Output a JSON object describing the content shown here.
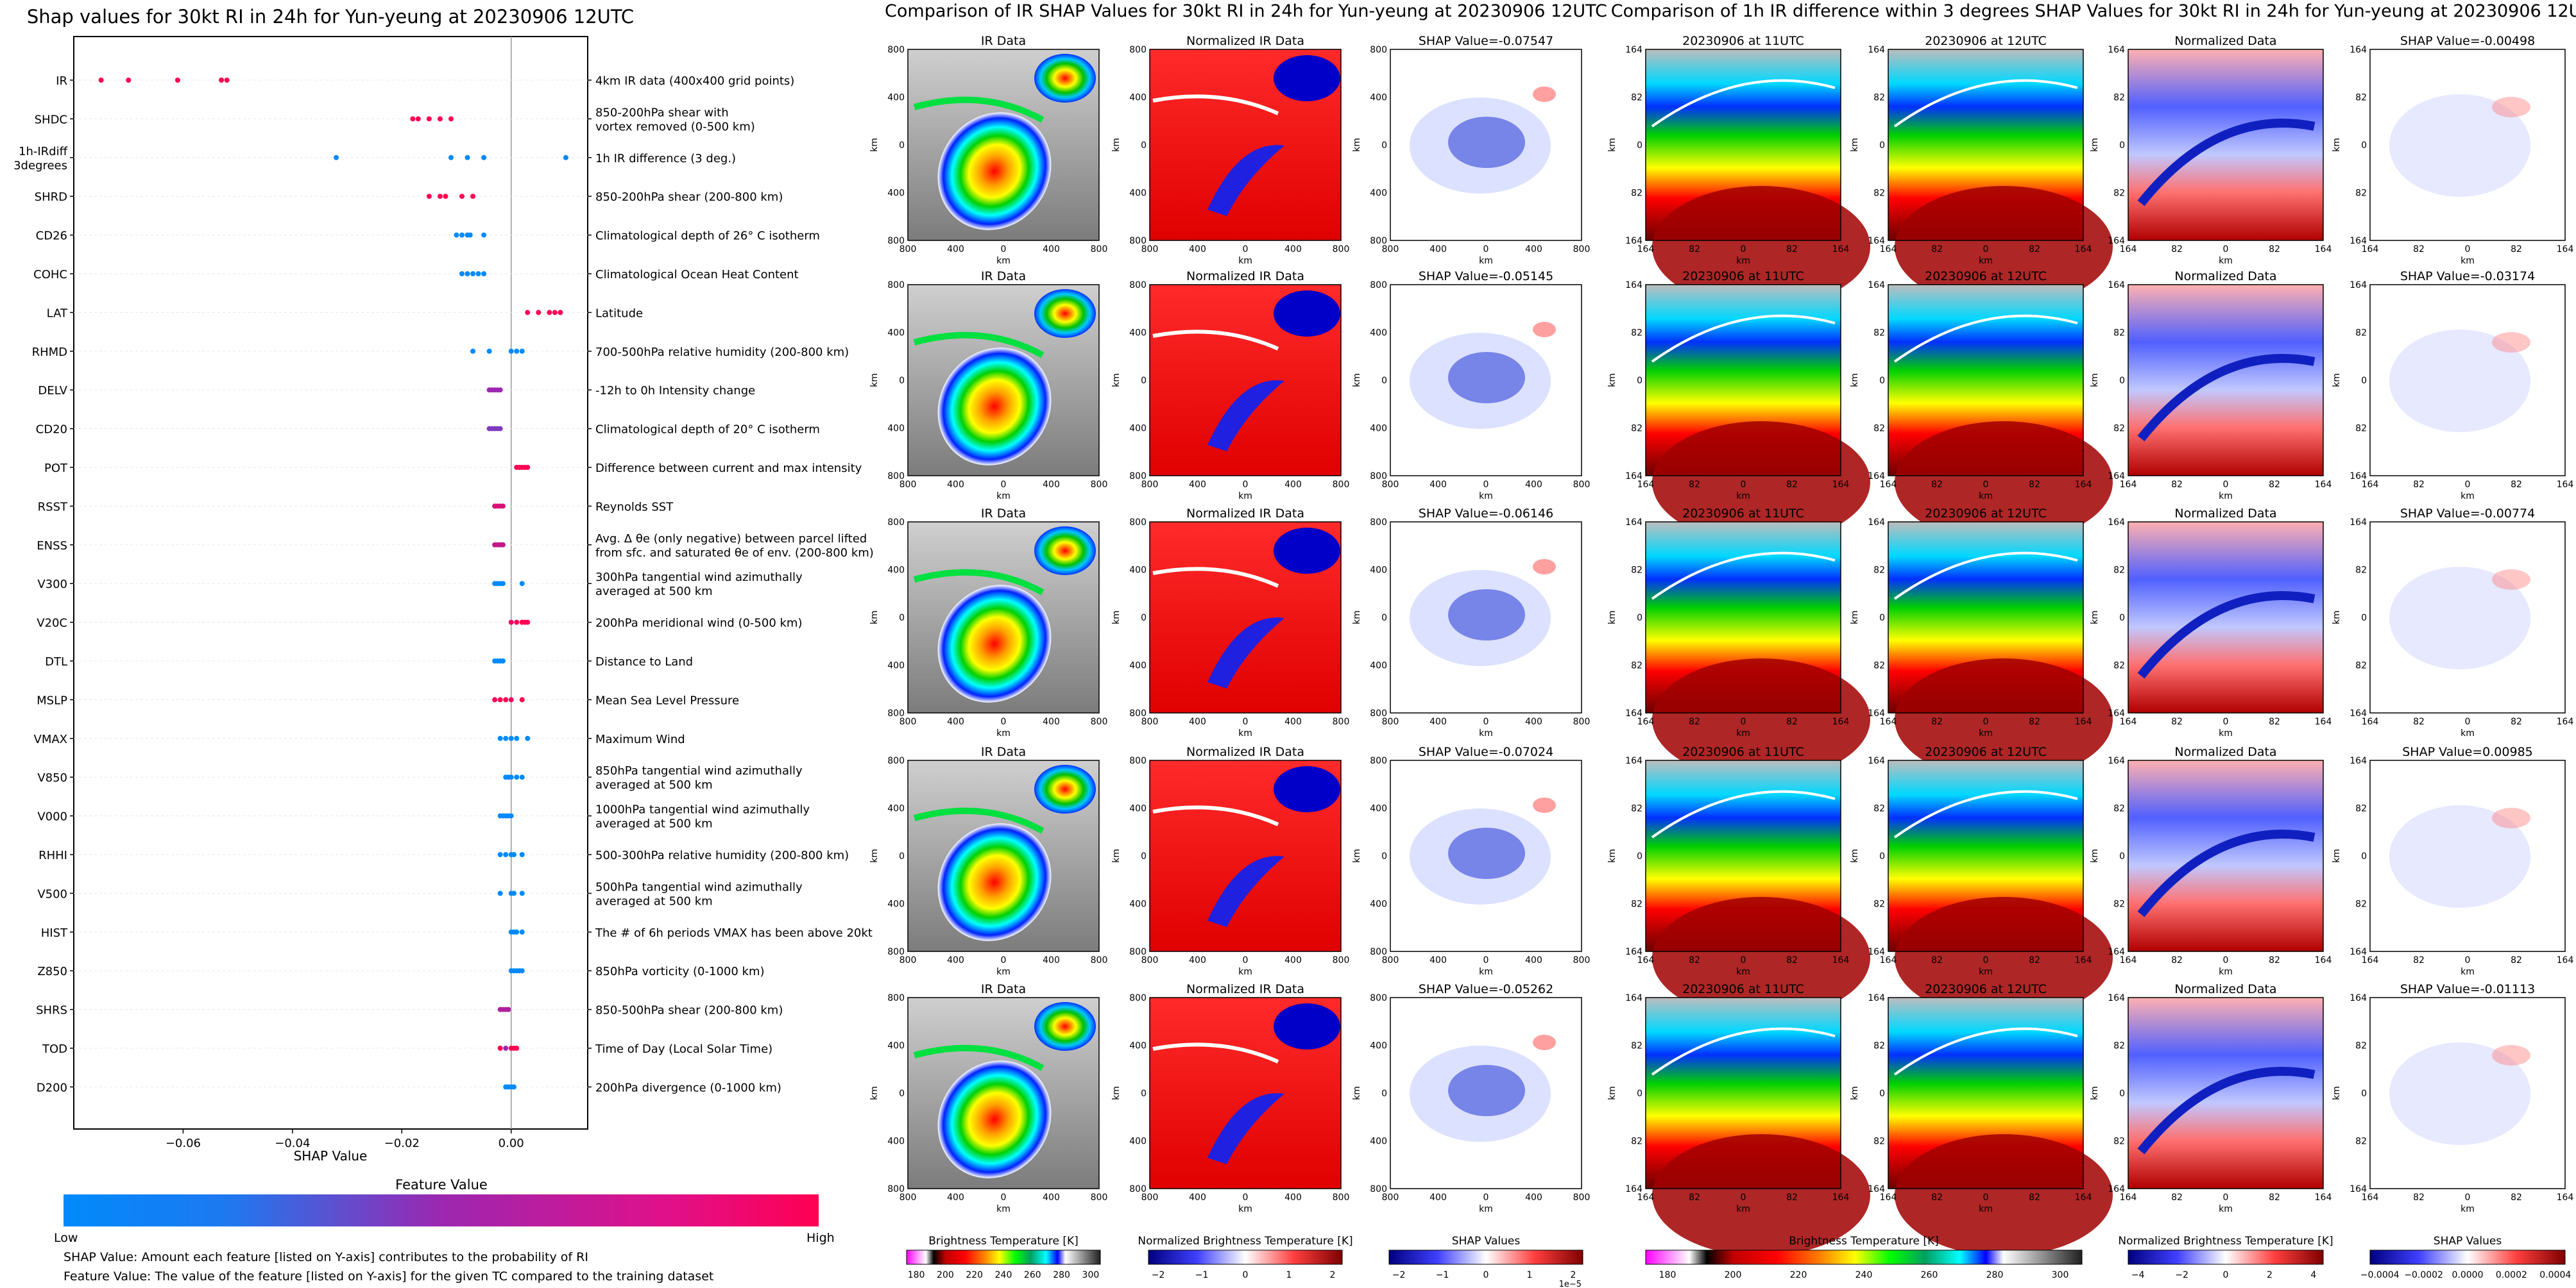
{
  "panel_titles": {
    "shap": "Shap values for 30kt RI in 24h for Yun-yeung at 20230906 12UTC",
    "ir": "Comparison of IR SHAP Values for 30kt RI in 24h for Yun-yeung at 20230906 12UTC",
    "diff": "Comparison of 1h IR difference within 3 degrees SHAP Values for 30kt RI in 24h for Yun-yeung at 20230906 12UTC"
  },
  "colors": {
    "low": "#008afb",
    "mid": "#9c27b0",
    "high": "#ff0052"
  },
  "chart_data": [
    {
      "type": "scatter",
      "title": "Shap values for 30kt RI in 24h for Yun-yeung at 20230906 12UTC",
      "xlabel": "SHAP Value",
      "xlim": [
        -0.08,
        0.014
      ],
      "xticks": [
        -0.06,
        -0.04,
        -0.02,
        0.0
      ],
      "xtick_labels": [
        "−0.06",
        "−0.04",
        "−0.02",
        "0.00"
      ],
      "colorbar": {
        "label": "Feature Value",
        "low": "Low",
        "high": "High"
      },
      "notes": [
        "SHAP Value: Amount each feature [listed on Y-axis] contributes to the probability of RI",
        "Feature Value: The value of the feature [listed on Y-axis] for the given TC compared to the training dataset"
      ],
      "features": [
        {
          "name": "IR",
          "desc": [
            "4km IR data (400x400 grid points)"
          ],
          "points": [
            [
              -0.075,
              1
            ],
            [
              -0.07,
              1
            ],
            [
              -0.061,
              1
            ],
            [
              -0.053,
              1
            ],
            [
              -0.052,
              1
            ]
          ]
        },
        {
          "name": "SHDC",
          "desc": [
            "850-200hPa shear with",
            "vortex removed (0-500 km)"
          ],
          "points": [
            [
              -0.018,
              1
            ],
            [
              -0.017,
              1
            ],
            [
              -0.015,
              1
            ],
            [
              -0.013,
              1
            ],
            [
              -0.011,
              1
            ]
          ]
        },
        {
          "name": [
            "1h-IRdiff",
            "3degrees"
          ],
          "desc": [
            "1h IR difference (3 deg.)"
          ],
          "points": [
            [
              -0.032,
              0
            ],
            [
              -0.011,
              0
            ],
            [
              -0.008,
              0
            ],
            [
              -0.005,
              0
            ],
            [
              0.01,
              0
            ]
          ]
        },
        {
          "name": "SHRD",
          "desc": [
            "850-200hPa shear (200-800 km)"
          ],
          "points": [
            [
              -0.015,
              1
            ],
            [
              -0.013,
              1
            ],
            [
              -0.012,
              1
            ],
            [
              -0.009,
              1
            ],
            [
              -0.007,
              1
            ]
          ]
        },
        {
          "name": "CD26",
          "desc": [
            "Climatological depth of 26° C isotherm"
          ],
          "points": [
            [
              -0.01,
              0
            ],
            [
              -0.009,
              0
            ],
            [
              -0.008,
              0
            ],
            [
              -0.0075,
              0
            ],
            [
              -0.005,
              0
            ]
          ]
        },
        {
          "name": "COHC",
          "desc": [
            "Climatological Ocean Heat Content"
          ],
          "points": [
            [
              -0.009,
              0
            ],
            [
              -0.008,
              0
            ],
            [
              -0.007,
              0
            ],
            [
              -0.006,
              0
            ],
            [
              -0.005,
              0
            ]
          ]
        },
        {
          "name": "LAT",
          "desc": [
            "Latitude"
          ],
          "points": [
            [
              0.003,
              1
            ],
            [
              0.005,
              1
            ],
            [
              0.007,
              1
            ],
            [
              0.008,
              1
            ],
            [
              0.009,
              1
            ]
          ]
        },
        {
          "name": "RHMD",
          "desc": [
            "700-500hPa relative humidity (200-800 km)"
          ],
          "points": [
            [
              -0.007,
              0
            ],
            [
              -0.004,
              0
            ],
            [
              0.0,
              0
            ],
            [
              0.001,
              0
            ],
            [
              0.002,
              0
            ]
          ]
        },
        {
          "name": "DELV",
          "desc": [
            "-12h to 0h Intensity change"
          ],
          "points": [
            [
              -0.004,
              0.5
            ],
            [
              -0.0035,
              0.5
            ],
            [
              -0.003,
              0.5
            ],
            [
              -0.0025,
              0.5
            ],
            [
              -0.002,
              0.5
            ]
          ]
        },
        {
          "name": "CD20",
          "desc": [
            "Climatological depth of 20° C isotherm"
          ],
          "points": [
            [
              -0.004,
              0.4
            ],
            [
              -0.0035,
              0.4
            ],
            [
              -0.003,
              0.4
            ],
            [
              -0.0025,
              0.4
            ],
            [
              -0.002,
              0.4
            ]
          ]
        },
        {
          "name": "POT",
          "desc": [
            "Difference between current and max intensity"
          ],
          "points": [
            [
              0.001,
              1
            ],
            [
              0.0015,
              1
            ],
            [
              0.002,
              1
            ],
            [
              0.0025,
              1
            ],
            [
              0.003,
              1
            ]
          ]
        },
        {
          "name": "RSST",
          "desc": [
            "Reynolds SST"
          ],
          "points": [
            [
              -0.003,
              0.8
            ],
            [
              -0.0025,
              0.8
            ],
            [
              -0.002,
              0.8
            ],
            [
              -0.0015,
              0.8
            ]
          ]
        },
        {
          "name": "ENSS",
          "desc": [
            "Avg. Δ θe (only negative) between parcel lifted",
            "from sfc. and saturated θe of env. (200-800 km)"
          ],
          "points": [
            [
              -0.003,
              0.7
            ],
            [
              -0.0025,
              0.7
            ],
            [
              -0.002,
              0.7
            ],
            [
              -0.0015,
              0.7
            ]
          ]
        },
        {
          "name": "V300",
          "desc": [
            "300hPa tangential wind azimuthally",
            "averaged at 500 km"
          ],
          "points": [
            [
              -0.003,
              0
            ],
            [
              -0.0025,
              0
            ],
            [
              -0.002,
              0
            ],
            [
              -0.0015,
              0
            ],
            [
              0.002,
              0
            ]
          ]
        },
        {
          "name": "V20C",
          "desc": [
            "200hPa meridional wind (0-500 km)"
          ],
          "points": [
            [
              0.0,
              0.9
            ],
            [
              0.001,
              1
            ],
            [
              0.002,
              1
            ],
            [
              0.0025,
              1
            ],
            [
              0.003,
              1
            ]
          ]
        },
        {
          "name": "DTL",
          "desc": [
            "Distance to Land"
          ],
          "points": [
            [
              -0.003,
              0
            ],
            [
              -0.0025,
              0
            ],
            [
              -0.002,
              0
            ],
            [
              -0.0015,
              0
            ]
          ]
        },
        {
          "name": "MSLP",
          "desc": [
            "Mean Sea Level Pressure"
          ],
          "points": [
            [
              -0.003,
              1
            ],
            [
              -0.002,
              1
            ],
            [
              -0.001,
              1
            ],
            [
              0.0,
              0.9
            ],
            [
              0.002,
              1
            ]
          ]
        },
        {
          "name": "VMAX",
          "desc": [
            "Maximum Wind"
          ],
          "points": [
            [
              -0.002,
              0
            ],
            [
              -0.001,
              0
            ],
            [
              0.0,
              0
            ],
            [
              0.001,
              0
            ],
            [
              0.003,
              0
            ]
          ]
        },
        {
          "name": "V850",
          "desc": [
            "850hPa tangential wind azimuthally",
            "averaged at 500 km"
          ],
          "points": [
            [
              -0.001,
              0
            ],
            [
              -0.0005,
              0
            ],
            [
              0.0,
              0
            ],
            [
              0.001,
              0
            ],
            [
              0.002,
              0
            ]
          ]
        },
        {
          "name": "V000",
          "desc": [
            "1000hPa tangential wind azimuthally",
            "averaged at 500 km"
          ],
          "points": [
            [
              -0.002,
              0
            ],
            [
              -0.0015,
              0
            ],
            [
              -0.001,
              0
            ],
            [
              -0.0005,
              0
            ],
            [
              0.0,
              0
            ]
          ]
        },
        {
          "name": "RHHI",
          "desc": [
            "500-300hPa relative humidity (200-800 km)"
          ],
          "points": [
            [
              -0.002,
              0
            ],
            [
              -0.001,
              0
            ],
            [
              0.0,
              0
            ],
            [
              0.0005,
              0
            ],
            [
              0.002,
              0
            ]
          ]
        },
        {
          "name": "V500",
          "desc": [
            "500hPa tangential wind azimuthally",
            "averaged at 500 km"
          ],
          "points": [
            [
              -0.002,
              0
            ],
            [
              0.0,
              0
            ],
            [
              0.0005,
              0
            ],
            [
              0.002,
              0
            ]
          ]
        },
        {
          "name": "HIST",
          "desc": [
            "The # of 6h periods VMAX has been above 20kt"
          ],
          "points": [
            [
              0.0,
              0
            ],
            [
              0.0005,
              0
            ],
            [
              0.001,
              0
            ],
            [
              0.002,
              0
            ]
          ]
        },
        {
          "name": "Z850",
          "desc": [
            "850hPa vorticity (0-1000 km)"
          ],
          "points": [
            [
              0.0,
              0
            ],
            [
              0.0005,
              0
            ],
            [
              0.001,
              0
            ],
            [
              0.0015,
              0
            ],
            [
              0.002,
              0
            ]
          ]
        },
        {
          "name": "SHRS",
          "desc": [
            "850-500hPa shear (200-800 km)"
          ],
          "points": [
            [
              -0.002,
              0.6
            ],
            [
              -0.0015,
              0.6
            ],
            [
              -0.001,
              0.6
            ],
            [
              -0.0005,
              0.6
            ]
          ]
        },
        {
          "name": "TOD",
          "desc": [
            "Time of Day (Local Solar Time)"
          ],
          "points": [
            [
              -0.002,
              1
            ],
            [
              -0.001,
              0.5
            ],
            [
              0.0,
              1
            ],
            [
              0.0005,
              1
            ],
            [
              0.001,
              1
            ]
          ]
        },
        {
          "name": "D200",
          "desc": [
            "200hPa divergence (0-1000 km)"
          ],
          "points": [
            [
              -0.001,
              0
            ],
            [
              -0.0005,
              0
            ],
            [
              0.0,
              0
            ],
            [
              0.0005,
              0
            ]
          ]
        }
      ]
    },
    {
      "type": "heatmap",
      "title": "Comparison of IR SHAP Values for 30kt RI in 24h for Yun-yeung at 20230906 12UTC",
      "axis_unit": "km",
      "tick_labels": [
        "800",
        "400",
        "0",
        "400",
        "800"
      ],
      "columns": [
        "IR Data",
        "Normalized IR Data"
      ],
      "shap_titles": [
        "SHAP Value=-0.07547",
        "SHAP Value=-0.05145",
        "SHAP Value=-0.06146",
        "SHAP Value=-0.07024",
        "SHAP Value=-0.05262"
      ],
      "colorbars": [
        {
          "label": "Brightness Temperature [K]",
          "ticks": [
            "180",
            "200",
            "220",
            "240",
            "260",
            "280",
            "300"
          ]
        },
        {
          "label": "Normalized Brightness Temperature [K]",
          "ticks": [
            "−2",
            "−1",
            "0",
            "1",
            "2"
          ]
        },
        {
          "label": "SHAP Values",
          "ticks": [
            "−2",
            "−1",
            "0",
            "1",
            "2"
          ],
          "exponent": "1e−5"
        }
      ]
    },
    {
      "type": "heatmap",
      "title": "Comparison of 1h IR difference within 3 degrees SHAP Values for 30kt RI in 24h for Yun-yeung at 20230906 12UTC",
      "axis_unit": "km",
      "tick_labels": [
        "164",
        "82",
        "0",
        "82",
        "164"
      ],
      "columns": [
        "20230906 at 11UTC",
        "20230906 at 12UTC",
        "Normalized Data"
      ],
      "shap_titles": [
        "SHAP Value=-0.00498",
        "SHAP Value=-0.03174",
        "SHAP Value=-0.00774",
        "SHAP Value=0.00985",
        "SHAP Value=-0.01113"
      ],
      "colorbars": [
        {
          "label": "Brightness Temperature [K]",
          "ticks": [
            "180",
            "200",
            "220",
            "240",
            "260",
            "280",
            "300"
          ]
        },
        {
          "label": "Normalized Brightness Temperature [K]",
          "ticks": [
            "−4",
            "−2",
            "0",
            "2",
            "4"
          ]
        },
        {
          "label": "SHAP Values",
          "ticks": [
            "−0.0004",
            "−0.0002",
            "0.0000",
            "0.0002",
            "0.0004"
          ]
        }
      ]
    }
  ]
}
